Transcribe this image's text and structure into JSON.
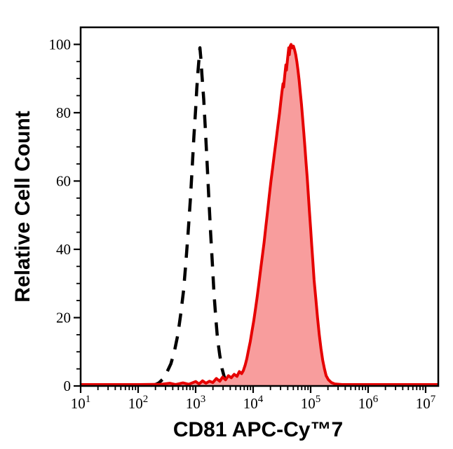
{
  "figure": {
    "background": "#ffffff",
    "frame_color": "#000000"
  },
  "chart_data": {
    "type": "area",
    "title": "",
    "xlabel": "CD81 APC-Cy™7",
    "ylabel": "Relative Cell Count",
    "x_scale": "log10",
    "x_tick_label_base": "10",
    "x_exponent_ticks": [
      1,
      2,
      3,
      4,
      5,
      6,
      7
    ],
    "xlim_log10": [
      1,
      7.22
    ],
    "ylim": [
      0,
      105
    ],
    "y_major_ticks": [
      0,
      20,
      40,
      60,
      80,
      100
    ],
    "y_minor_step": 5,
    "grid": false,
    "legend": "none",
    "series": [
      {
        "name": "black-dashed-control-histogram",
        "line_style": "dashed",
        "stroke": "#000000",
        "stroke_width": 4.5,
        "dash": [
          19,
          14
        ],
        "fill": "none",
        "peak_log10_x": 3.07,
        "peak_x_approx": 1200,
        "peak_count": 99,
        "points": [
          [
            2.22,
            0.2
          ],
          [
            2.3,
            0.4
          ],
          [
            2.36,
            0.9
          ],
          [
            2.43,
            2
          ],
          [
            2.5,
            4
          ],
          [
            2.57,
            6.5
          ],
          [
            2.63,
            10
          ],
          [
            2.69,
            15
          ],
          [
            2.74,
            21
          ],
          [
            2.79,
            28
          ],
          [
            2.83,
            36
          ],
          [
            2.87,
            45
          ],
          [
            2.91,
            55
          ],
          [
            2.94,
            64
          ],
          [
            2.97,
            73
          ],
          [
            3.0,
            81
          ],
          [
            3.02,
            87
          ],
          [
            3.04,
            92
          ],
          [
            3.06,
            96
          ],
          [
            3.075,
            99
          ],
          [
            3.09,
            96
          ],
          [
            3.11,
            91
          ],
          [
            3.14,
            84
          ],
          [
            3.17,
            75
          ],
          [
            3.2,
            65
          ],
          [
            3.23,
            55
          ],
          [
            3.26,
            45
          ],
          [
            3.29,
            36
          ],
          [
            3.32,
            27
          ],
          [
            3.35,
            20
          ],
          [
            3.38,
            14
          ],
          [
            3.42,
            9
          ],
          [
            3.46,
            5
          ],
          [
            3.5,
            2.5
          ],
          [
            3.55,
            1.2
          ],
          [
            3.62,
            0.8
          ],
          [
            3.75,
            0.7
          ],
          [
            3.9,
            0.7
          ],
          [
            4.05,
            0.7
          ],
          [
            4.2,
            0.7
          ],
          [
            4.35,
            0.7
          ],
          [
            4.5,
            0.7
          ],
          [
            4.65,
            0.7
          ],
          [
            4.8,
            0.7
          ],
          [
            4.95,
            0.7
          ],
          [
            5.1,
            0.7
          ],
          [
            5.22,
            0.6
          ],
          [
            5.28,
            0.4
          ]
        ]
      },
      {
        "name": "red-filled-stained-histogram",
        "line_style": "solid",
        "stroke": "#e60000",
        "stroke_width": 4,
        "dash": null,
        "fill": "#f89d9d",
        "peak_log10_x": 4.66,
        "peak_x_approx": 46000,
        "peak_count": 100,
        "points": [
          [
            1.0,
            0.4
          ],
          [
            1.5,
            0.4
          ],
          [
            2.0,
            0.4
          ],
          [
            2.4,
            0.5
          ],
          [
            2.55,
            0.8
          ],
          [
            2.65,
            0.4
          ],
          [
            2.78,
            0.9
          ],
          [
            2.88,
            0.5
          ],
          [
            3.0,
            1.3
          ],
          [
            3.06,
            0.6
          ],
          [
            3.12,
            1.5
          ],
          [
            3.18,
            0.8
          ],
          [
            3.24,
            1.4
          ],
          [
            3.3,
            1.0
          ],
          [
            3.36,
            2.2
          ],
          [
            3.42,
            1.4
          ],
          [
            3.47,
            2.6
          ],
          [
            3.52,
            1.8
          ],
          [
            3.57,
            3.0
          ],
          [
            3.62,
            2.4
          ],
          [
            3.67,
            3.4
          ],
          [
            3.72,
            2.8
          ],
          [
            3.76,
            4.2
          ],
          [
            3.8,
            3.6
          ],
          [
            3.83,
            4.5
          ],
          [
            3.86,
            6
          ],
          [
            3.89,
            8
          ],
          [
            3.92,
            10.5
          ],
          [
            3.95,
            13
          ],
          [
            3.98,
            16
          ],
          [
            4.01,
            19
          ],
          [
            4.04,
            22.5
          ],
          [
            4.07,
            26
          ],
          [
            4.1,
            30
          ],
          [
            4.13,
            34
          ],
          [
            4.16,
            38
          ],
          [
            4.19,
            42
          ],
          [
            4.22,
            46.5
          ],
          [
            4.25,
            51
          ],
          [
            4.28,
            55.5
          ],
          [
            4.31,
            60
          ],
          [
            4.34,
            64
          ],
          [
            4.37,
            68
          ],
          [
            4.4,
            72
          ],
          [
            4.43,
            76
          ],
          [
            4.46,
            80
          ],
          [
            4.48,
            83
          ],
          [
            4.5,
            86
          ],
          [
            4.52,
            88.5
          ],
          [
            4.53,
            87.5
          ],
          [
            4.55,
            91
          ],
          [
            4.57,
            94
          ],
          [
            4.58,
            92.5
          ],
          [
            4.6,
            96
          ],
          [
            4.62,
            99
          ],
          [
            4.63,
            97
          ],
          [
            4.645,
            99.5
          ],
          [
            4.66,
            100
          ],
          [
            4.68,
            99
          ],
          [
            4.7,
            99.5
          ],
          [
            4.72,
            98.5
          ],
          [
            4.74,
            97
          ],
          [
            4.76,
            95
          ],
          [
            4.78,
            92.5
          ],
          [
            4.8,
            89.5
          ],
          [
            4.82,
            86
          ],
          [
            4.84,
            82.5
          ],
          [
            4.86,
            78.5
          ],
          [
            4.88,
            74.5
          ],
          [
            4.9,
            70
          ],
          [
            4.92,
            65.5
          ],
          [
            4.94,
            61
          ],
          [
            4.96,
            56
          ],
          [
            4.98,
            51
          ],
          [
            5.0,
            46
          ],
          [
            5.02,
            41
          ],
          [
            5.04,
            36
          ],
          [
            5.06,
            31
          ],
          [
            5.09,
            25.5
          ],
          [
            5.12,
            20
          ],
          [
            5.15,
            15
          ],
          [
            5.18,
            11
          ],
          [
            5.21,
            7.5
          ],
          [
            5.24,
            5
          ],
          [
            5.27,
            3
          ],
          [
            5.31,
            1.8
          ],
          [
            5.36,
            1.0
          ],
          [
            5.42,
            0.6
          ],
          [
            5.55,
            0.4
          ],
          [
            5.8,
            0.4
          ],
          [
            6.1,
            0.4
          ],
          [
            6.5,
            0.4
          ],
          [
            6.9,
            0.4
          ],
          [
            7.22,
            0.4
          ]
        ]
      }
    ]
  }
}
